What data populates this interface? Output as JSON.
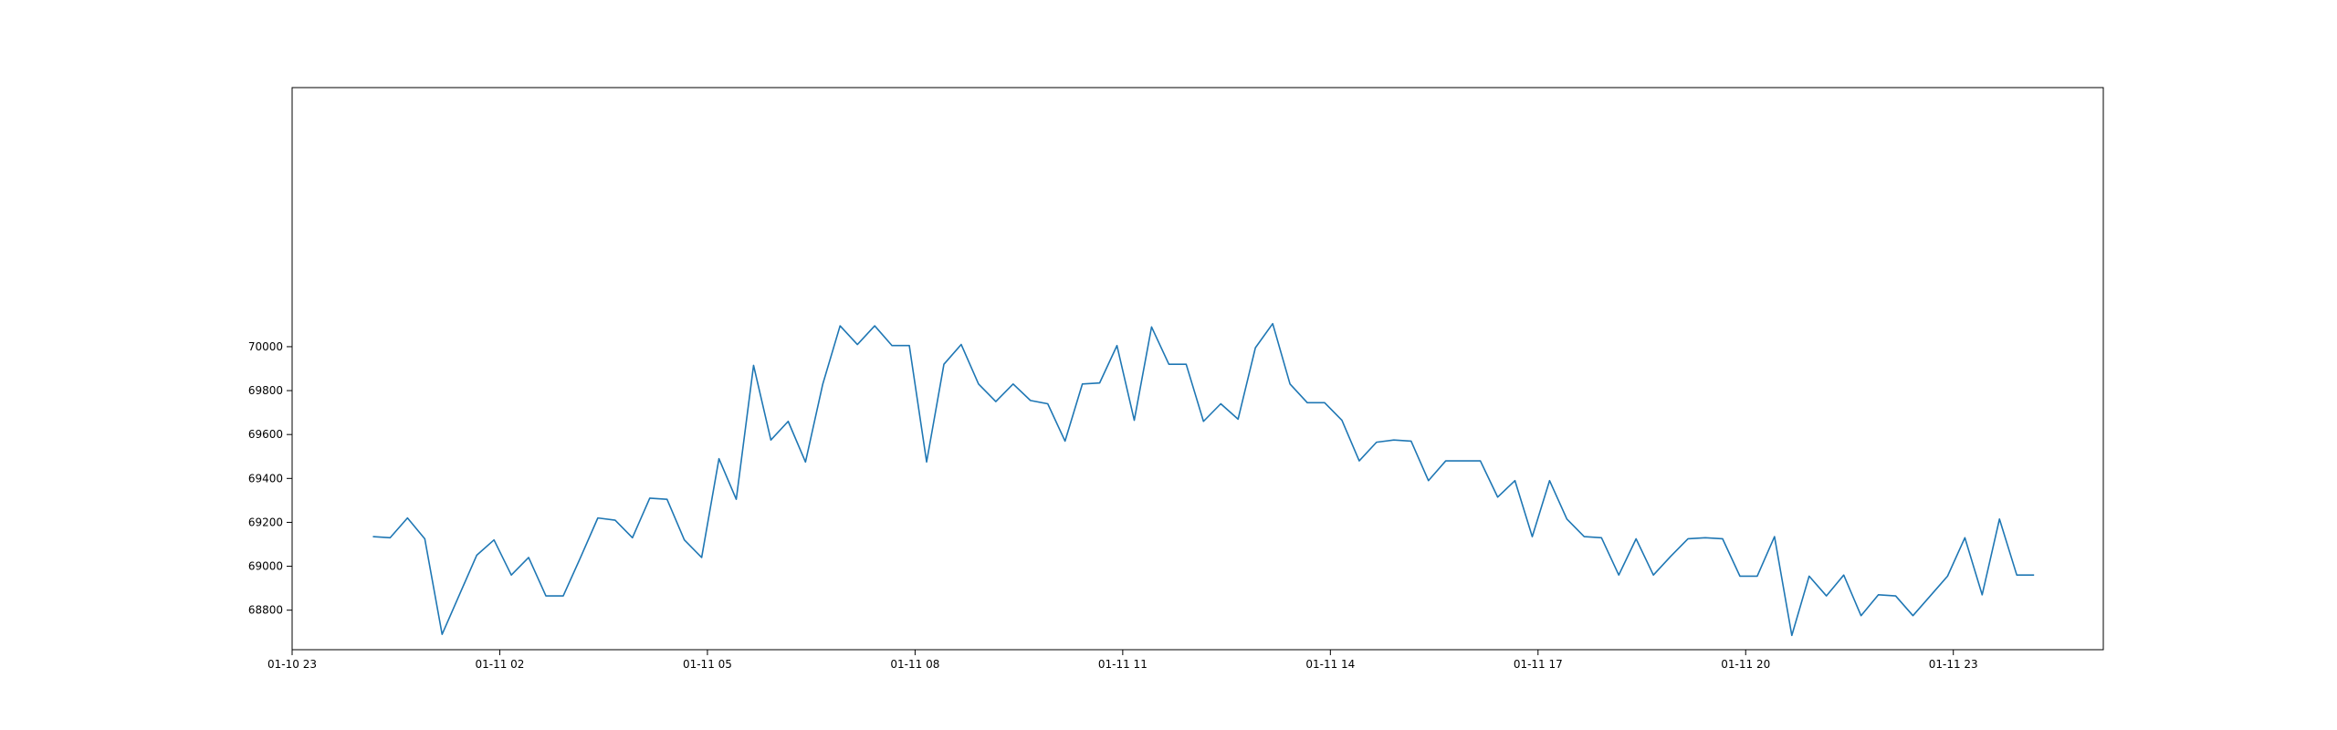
{
  "chart_data": {
    "type": "line",
    "title": "",
    "xlabel": "",
    "ylabel": "",
    "grid": false,
    "legend": "none",
    "colors": {
      "line": "#1f77b4",
      "axes": "#000000",
      "background": "#ffffff"
    },
    "x_range": [
      "01-10 23:00",
      "01-12 01:10"
    ],
    "y_range": [
      68620,
      71180
    ],
    "x_ticks": [
      {
        "label": "01-10 23",
        "value": "01-10 23:00"
      },
      {
        "label": "01-11 02",
        "value": "01-11 02:00"
      },
      {
        "label": "01-11 05",
        "value": "01-11 05:00"
      },
      {
        "label": "01-11 08",
        "value": "01-11 08:00"
      },
      {
        "label": "01-11 11",
        "value": "01-11 11:00"
      },
      {
        "label": "01-11 14",
        "value": "01-11 14:00"
      },
      {
        "label": "01-11 17",
        "value": "01-11 17:00"
      },
      {
        "label": "01-11 20",
        "value": "01-11 20:00"
      },
      {
        "label": "01-11 23",
        "value": "01-11 23:00"
      }
    ],
    "y_ticks": [
      {
        "label": "68800",
        "value": 68800
      },
      {
        "label": "69000",
        "value": 69000
      },
      {
        "label": "69200",
        "value": 69200
      },
      {
        "label": "69400",
        "value": 69400
      },
      {
        "label": "69600",
        "value": 69600
      },
      {
        "label": "69800",
        "value": 69800
      },
      {
        "label": "70000",
        "value": 70000
      }
    ],
    "series": [
      {
        "x": [
          "01-11 00:10",
          "01-11 00:25",
          "01-11 00:40",
          "01-11 00:55",
          "01-11 01:10",
          "01-11 01:25",
          "01-11 01:40",
          "01-11 01:55",
          "01-11 02:10",
          "01-11 02:25",
          "01-11 02:40",
          "01-11 02:55",
          "01-11 03:10",
          "01-11 03:25",
          "01-11 03:40",
          "01-11 03:55",
          "01-11 04:10",
          "01-11 04:25",
          "01-11 04:40",
          "01-11 04:55",
          "01-11 05:10",
          "01-11 05:25",
          "01-11 05:40",
          "01-11 05:55",
          "01-11 06:10",
          "01-11 06:25",
          "01-11 06:40",
          "01-11 06:55",
          "01-11 07:10",
          "01-11 07:25",
          "01-11 07:40",
          "01-11 07:55",
          "01-11 08:10",
          "01-11 08:25",
          "01-11 08:40",
          "01-11 08:55",
          "01-11 09:10",
          "01-11 09:25",
          "01-11 09:40",
          "01-11 09:55",
          "01-11 10:10",
          "01-11 10:25",
          "01-11 10:40",
          "01-11 10:55",
          "01-11 11:10",
          "01-11 11:25",
          "01-11 11:40",
          "01-11 11:55",
          "01-11 12:10",
          "01-11 12:25",
          "01-11 12:40",
          "01-11 12:55",
          "01-11 13:10",
          "01-11 13:25",
          "01-11 13:40",
          "01-11 13:55",
          "01-11 14:10",
          "01-11 14:25",
          "01-11 14:40",
          "01-11 14:55",
          "01-11 15:10",
          "01-11 15:25",
          "01-11 15:40",
          "01-11 15:55",
          "01-11 16:10",
          "01-11 16:25",
          "01-11 16:40",
          "01-11 16:55",
          "01-11 17:10",
          "01-11 17:25",
          "01-11 17:40",
          "01-11 17:55",
          "01-11 18:10",
          "01-11 18:25",
          "01-11 18:40",
          "01-11 18:55",
          "01-11 19:10",
          "01-11 19:25",
          "01-11 19:40",
          "01-11 19:55",
          "01-11 20:10",
          "01-11 20:25",
          "01-11 20:40",
          "01-11 20:55",
          "01-11 21:10",
          "01-11 21:25",
          "01-11 21:40",
          "01-11 21:55",
          "01-11 22:10",
          "01-11 22:25",
          "01-11 22:40",
          "01-11 22:55",
          "01-11 23:10",
          "01-11 23:25",
          "01-11 23:40",
          "01-11 23:55",
          "01-12 00:10"
        ],
        "y": [
          69135,
          69130,
          69220,
          69125,
          68690,
          68870,
          69050,
          69120,
          68960,
          69040,
          68865,
          68865,
          69040,
          69220,
          69210,
          69130,
          69310,
          69305,
          69120,
          69040,
          69490,
          69305,
          69915,
          69575,
          69660,
          69475,
          69830,
          70095,
          70010,
          70095,
          70005,
          70005,
          69475,
          69920,
          70010,
          69830,
          69750,
          69830,
          69755,
          69740,
          69570,
          69830,
          69835,
          70005,
          69665,
          70090,
          69920,
          69920,
          69660,
          69740,
          69670,
          69995,
          70105,
          69830,
          69745,
          69745,
          69665,
          69480,
          69565,
          69575,
          69570,
          69390,
          69480,
          69480,
          69480,
          69315,
          69390,
          69135,
          69390,
          69215,
          69135,
          69130,
          68960,
          69125,
          68960,
          69045,
          69125,
          69130,
          69125,
          68955,
          68955,
          69135,
          68685,
          68955,
          68865,
          68960,
          68775,
          68870,
          68865,
          68775,
          68865,
          68955,
          69130,
          68870,
          69215,
          68960,
          68960
        ]
      }
    ]
  }
}
